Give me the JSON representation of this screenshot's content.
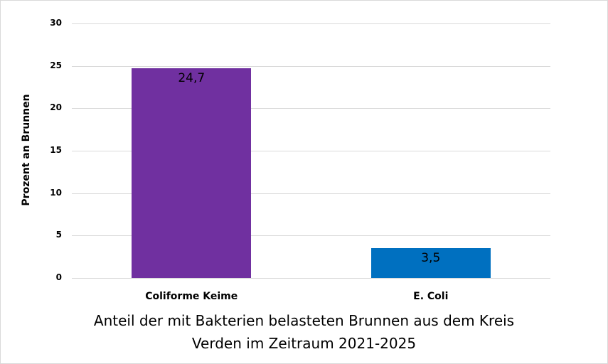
{
  "chart_data": {
    "type": "bar",
    "title": "Anteil der mit Bakterien belasteten Brunnen aus dem Kreis Verden im Zeitraum 2021-2025",
    "title_lines": [
      "Anteil der mit Bakterien belasteten Brunnen aus dem Kreis",
      "Verden im Zeitraum 2021-2025"
    ],
    "xlabel": "",
    "ylabel": "Prozent an Brunnen",
    "categories": [
      "Coliforme Keime",
      "E. Coli"
    ],
    "values": [
      24.7,
      3.5
    ],
    "value_labels": [
      "24,7",
      "3,5"
    ],
    "bar_colors": [
      "#7030a0",
      "#0070c0"
    ],
    "ylim": [
      0,
      30
    ],
    "yticks": [
      0,
      5,
      10,
      15,
      20,
      25,
      30
    ],
    "ytick_labels": [
      "0",
      "5",
      "10",
      "15",
      "20",
      "25",
      "30"
    ],
    "grid": true,
    "legend": "none"
  }
}
